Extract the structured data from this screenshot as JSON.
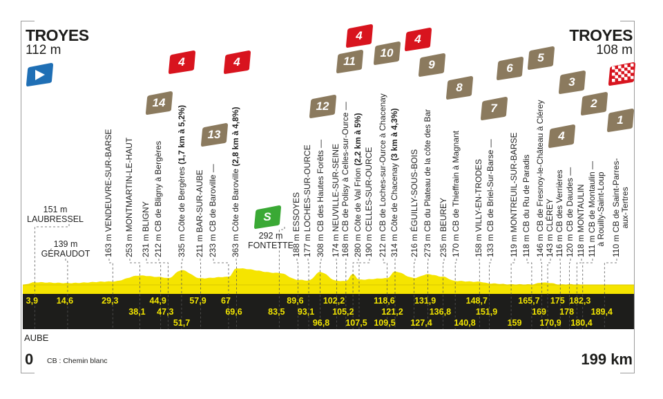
{
  "start": {
    "town": "TROYES",
    "altitude": "112 m"
  },
  "finish": {
    "town": "TROYES",
    "altitude": "108 m"
  },
  "region": "AUBE",
  "distance_start": "0",
  "distance_end": "199 km",
  "legend": "CB : Chemin blanc",
  "colors": {
    "profile": "#f5e400",
    "band": "#1d1d1b",
    "km_text": "#f2e500",
    "climb_badge": "#d8141e",
    "gravel_badge": "#8b7a5e",
    "sprint_badge": "#3aa935",
    "start_flag": "#1f6fb5"
  },
  "waypoints": [
    {
      "km": "3,9",
      "alt": "151 m",
      "name": "LAUBRESSEL"
    },
    {
      "km": "14,6",
      "alt": "139 m",
      "name": "GÉRAUDOT"
    },
    {
      "km": "29,3",
      "alt": "163 m",
      "name": "VENDEUVRE-SUR-BARSE"
    },
    {
      "km": "38,1",
      "alt": "253 m",
      "name": "MONTMARTIN-LE-HAUT"
    },
    {
      "km": "44,9",
      "alt": "231 m",
      "name": "BLIGNY"
    },
    {
      "km": "47,3",
      "alt": "212 m",
      "name": "CB de Bligny à Bergères"
    },
    {
      "km": "51,7",
      "alt": "335 m",
      "name": "Côte de Bergères",
      "detail": "(1,7 km à 5,2%)"
    },
    {
      "km": "57,9",
      "alt": "211 m",
      "name": "BAR-SUR-AUBE"
    },
    {
      "km": "67",
      "alt": "233 m",
      "name": "CB de Baroville —"
    },
    {
      "km": "69,6",
      "alt": "363 m",
      "name": "Côte de Baroville",
      "detail": "(2,8 km à 4,8%)"
    },
    {
      "km": "83,5",
      "alt": "292 m",
      "name": "FONTETTE"
    },
    {
      "km": "89,6",
      "alt": "188 m",
      "name": "ESSOYES"
    },
    {
      "km": "93,1",
      "alt": "177 m",
      "name": "LOCHES-SUR-OURCE"
    },
    {
      "km": "96,8",
      "alt": "308 m",
      "name": "CB des Hautes Forêts —"
    },
    {
      "km": "102,2",
      "alt": "174 m",
      "name": "NEUVILLE-SUR-SEINE"
    },
    {
      "km": "105,2",
      "alt": "168 m",
      "name": "CB de Polisy à Celles-sur-Ource —"
    },
    {
      "km": "107,5",
      "alt": "280 m",
      "name": "Côte de Val Frion",
      "detail": "(2,2 km à 5%)"
    },
    {
      "km": "109,5",
      "alt": "190 m",
      "name": "CELLES-SUR-OURCE"
    },
    {
      "km": "118,6",
      "alt": "212 m",
      "name": "CB de Loches-sur-Ource à Chacenay"
    },
    {
      "km": "121,2",
      "alt": "314 m",
      "name": "Côte de Chacenay",
      "detail": "(3 km à 4,3%)"
    },
    {
      "km": "127,4",
      "alt": "216 m",
      "name": "ÉGUILLY-SOUS-BOIS"
    },
    {
      "km": "131,9",
      "alt": "273 m",
      "name": "CB du Plateau de la côte des Bar"
    },
    {
      "km": "136,8",
      "alt": "235 m",
      "name": "BEUREY"
    },
    {
      "km": "140,8",
      "alt": "170 m",
      "name": "CB de Thieffrain à Magnant"
    },
    {
      "km": "148,7",
      "alt": "158 m",
      "name": "VILLY-EN-TRODES"
    },
    {
      "km": "151,9",
      "alt": "133 m",
      "name": "CB de Briel-Sur-Barse —"
    },
    {
      "km": "159",
      "alt": "119 m",
      "name": "MONTREUIL-SUR-BARSE"
    },
    {
      "km": "165,7",
      "alt": "118 m",
      "name": "CB du Ru de Paradis"
    },
    {
      "km": "169",
      "alt": "146 m",
      "name": "CB de Fresnoy-le-Château à Clérey"
    },
    {
      "km": "170,9",
      "alt": "143 m",
      "name": "CLÉREY"
    },
    {
      "km": "175",
      "alt": "116 m",
      "name": "CB des Verrières"
    },
    {
      "km": "178",
      "alt": "120 m",
      "name": "CB de Daudes —"
    },
    {
      "km": "180,4",
      "alt": "118 m",
      "name": "MONTAULIN"
    },
    {
      "km": "182,3",
      "alt": "111 m",
      "name": "CB de Montaulin —",
      "name2": "à Rouilly-Saint-Loup"
    },
    {
      "km": "189,4",
      "alt": "110 m",
      "name": "CB de Saint-Parres-",
      "name2": "aux-Tertres"
    }
  ],
  "badges": {
    "climbs": [
      "4",
      "4",
      "4",
      "4"
    ],
    "sprint": "S",
    "gravel_sectors": [
      "14",
      "13",
      "12",
      "11",
      "10",
      "9",
      "8",
      "7",
      "6",
      "5",
      "4",
      "3",
      "2",
      "1"
    ]
  },
  "chart_data": {
    "type": "area",
    "xlabel": "",
    "ylabel": "",
    "xlim": [
      0,
      199
    ],
    "x_unit": "km",
    "y_unit": "m",
    "km_ticks": [
      "3,9",
      "14,6",
      "29,3",
      "38,1",
      "44,9",
      "47,3",
      "51,7",
      "57,9",
      "67",
      "69,6",
      "83,5",
      "89,6",
      "93,1",
      "96,8",
      "102,2",
      "105,2",
      "107,5",
      "109,5",
      "118,6",
      "121,2",
      "127,4",
      "131,9",
      "136,8",
      "140,8",
      "148,7",
      "151,9",
      "159",
      "165,7",
      "169",
      "170,9",
      "175",
      "178",
      "180,4",
      "182,3",
      "189,4"
    ],
    "profile": [
      [
        0,
        112
      ],
      [
        3.9,
        151
      ],
      [
        14.6,
        139
      ],
      [
        29.3,
        163
      ],
      [
        38.1,
        253
      ],
      [
        44.9,
        231
      ],
      [
        47.3,
        212
      ],
      [
        51.7,
        335
      ],
      [
        57.9,
        211
      ],
      [
        67,
        233
      ],
      [
        69.6,
        363
      ],
      [
        83.5,
        292
      ],
      [
        89.6,
        188
      ],
      [
        93.1,
        177
      ],
      [
        96.8,
        308
      ],
      [
        102.2,
        174
      ],
      [
        105.2,
        168
      ],
      [
        107.5,
        280
      ],
      [
        109.5,
        190
      ],
      [
        118.6,
        212
      ],
      [
        121.2,
        314
      ],
      [
        127.4,
        216
      ],
      [
        131.9,
        273
      ],
      [
        136.8,
        235
      ],
      [
        140.8,
        170
      ],
      [
        148.7,
        158
      ],
      [
        151.9,
        133
      ],
      [
        159,
        119
      ],
      [
        165.7,
        118
      ],
      [
        169,
        146
      ],
      [
        170.9,
        143
      ],
      [
        175,
        116
      ],
      [
        178,
        120
      ],
      [
        180.4,
        118
      ],
      [
        182.3,
        111
      ],
      [
        189.4,
        110
      ],
      [
        199,
        108
      ]
    ]
  }
}
